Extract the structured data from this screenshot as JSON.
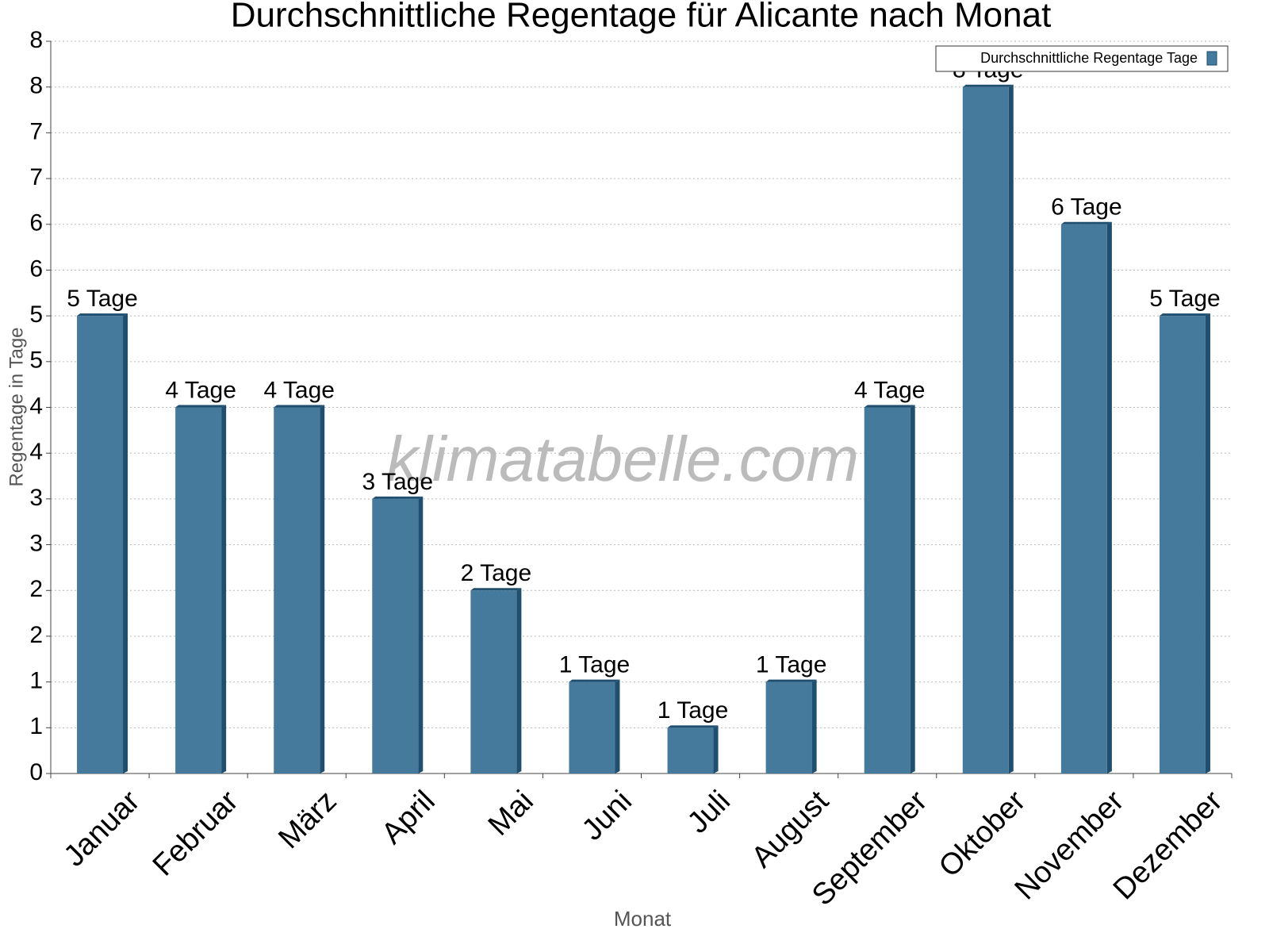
{
  "chart_data": {
    "type": "bar",
    "title": "Durchschnittliche Regentage für Alicante nach Monat",
    "x_label": "Monat",
    "y_label": "Regentage in Tage",
    "watermark": "klimatabelle.com",
    "categories": [
      "Januar",
      "Februar",
      "März",
      "April",
      "Mai",
      "Juni",
      "Juli",
      "August",
      "September",
      "Oktober",
      "November",
      "Dezember"
    ],
    "series": [
      {
        "name": "Durchschnittliche Regentage Tage",
        "color": "#467a9c",
        "values": [
          5,
          4,
          4,
          3,
          2,
          1,
          0.5,
          1,
          4,
          7.5,
          6,
          5
        ],
        "value_labels": [
          "5 Tage",
          "4 Tage",
          "4 Tage",
          "3 Tage",
          "2 Tage",
          "1 Tage",
          "1 Tage",
          "1 Tage",
          "4 Tage",
          "8 Tage",
          "6 Tage",
          "5 Tage"
        ]
      }
    ],
    "ylim": [
      0,
      8
    ],
    "yticks": [
      0,
      {
        "value": 0.5,
        "label": "1"
      },
      1,
      {
        "value": 1.5,
        "label": "2"
      },
      2,
      {
        "value": 2.5,
        "label": "3"
      },
      3,
      {
        "value": 3.5,
        "label": "4"
      },
      4,
      {
        "value": 4.5,
        "label": "5"
      },
      5,
      {
        "value": 5.5,
        "label": "6"
      },
      6,
      {
        "value": 6.5,
        "label": "7"
      },
      7,
      {
        "value": 7.5,
        "label": "8"
      },
      8
    ],
    "grid": true,
    "legend": "top-right"
  }
}
